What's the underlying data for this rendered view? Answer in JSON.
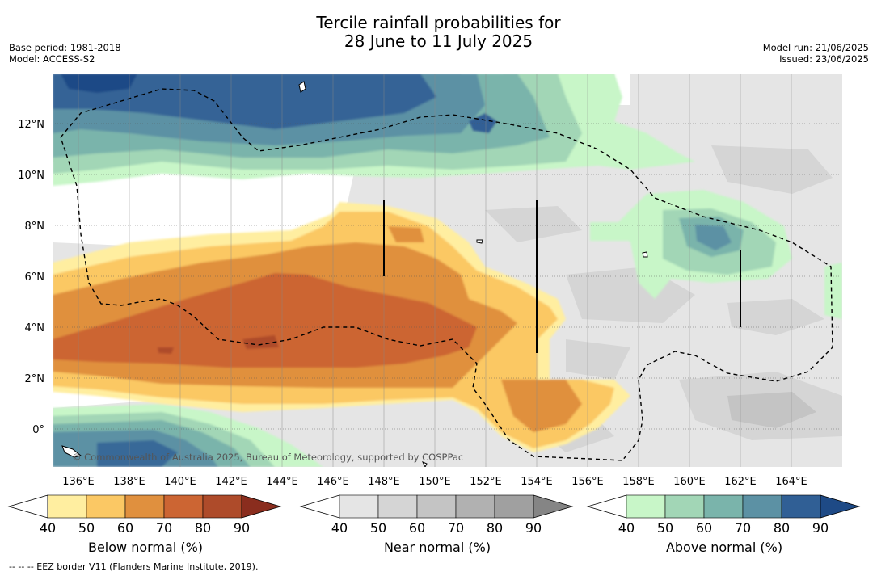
{
  "title_line1": "Tercile rainfall probabilities for",
  "title_line2": "28 June to 11 July 2025",
  "base_period": "Base period: 1981-2018",
  "model": "Model: ACCESS-S2",
  "model_run": "Model run: 21/06/2025",
  "issued": "Issued: 23/06/2025",
  "copyright": "© Commonwealth of Australia 2025, Bureau of Meteorology, supported by COSPPac",
  "footnote": "--  --  -- EEZ border V11 (Flanders Marine Institute, 2019).",
  "x_ticks": [
    "136°E",
    "138°E",
    "140°E",
    "142°E",
    "144°E",
    "146°E",
    "148°E",
    "150°E",
    "152°E",
    "154°E",
    "156°E",
    "158°E",
    "160°E",
    "162°E",
    "164°E"
  ],
  "y_ticks": [
    "12°N",
    "10°N",
    "8°N",
    "6°N",
    "4°N",
    "2°N",
    "0°"
  ],
  "colorbars": [
    {
      "label": "Below normal (%)",
      "ticks": [
        "40",
        "50",
        "60",
        "70",
        "80",
        "90"
      ],
      "colors": [
        "#ffeea0",
        "#fbc864",
        "#e0903e",
        "#cc6533",
        "#ae4b2a",
        "#8a2d1e"
      ]
    },
    {
      "label": "Near normal (%)",
      "ticks": [
        "40",
        "50",
        "60",
        "70",
        "80",
        "90"
      ],
      "colors": [
        "#e5e5e5",
        "#d5d5d5",
        "#c4c4c4",
        "#b1b1b1",
        "#a0a0a0",
        "#858585"
      ]
    },
    {
      "label": "Above normal (%)",
      "ticks": [
        "40",
        "50",
        "60",
        "70",
        "80",
        "90"
      ],
      "colors": [
        "#c8f6c8",
        "#a2d6b6",
        "#7ab4ab",
        "#5c91a4",
        "#305f95",
        "#1e4a86"
      ]
    }
  ]
}
